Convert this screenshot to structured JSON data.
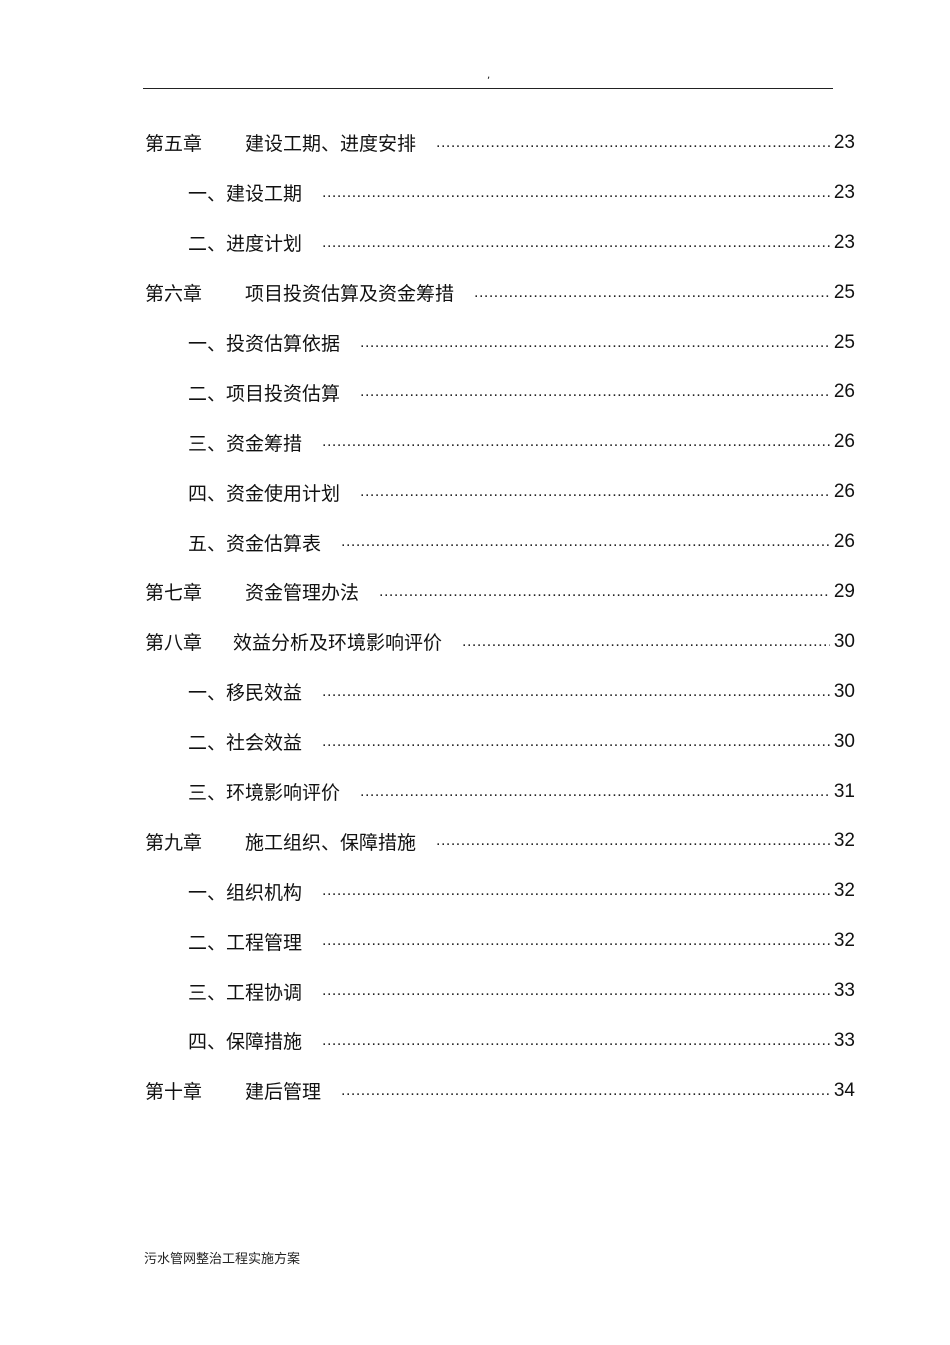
{
  "header": {
    "mark": ","
  },
  "toc": [
    {
      "chapter": "第五章",
      "title": "建设工期、进度安排",
      "page": "23"
    },
    {
      "title": "一、建设工期",
      "page": "23"
    },
    {
      "title": "二、进度计划",
      "page": "23"
    },
    {
      "chapter": "第六章",
      "title": "项目投资估算及资金筹措",
      "page": "25"
    },
    {
      "title": "一、投资估算依据",
      "page": "25"
    },
    {
      "title": "二、项目投资估算",
      "page": "26"
    },
    {
      "title": "三、资金筹措",
      "page": "26"
    },
    {
      "title": "四、资金使用计划",
      "page": "26"
    },
    {
      "title": "五、资金估算表",
      "page": "26"
    },
    {
      "chapter": "第七章",
      "title": "资金管理办法",
      "page": "29"
    },
    {
      "chapter": "第八章",
      "title": "效益分析及环境影响评价",
      "page": "30"
    },
    {
      "title": "一、移民效益",
      "page": "30"
    },
    {
      "title": "二、社会效益",
      "page": "30"
    },
    {
      "title": "三、环境影响评价",
      "page": "31"
    },
    {
      "chapter": "第九章",
      "title": "施工组织、保障措施",
      "page": "32"
    },
    {
      "title": "一、组织机构",
      "page": "32"
    },
    {
      "title": "二、工程管理",
      "page": "32"
    },
    {
      "title": "三、工程协调",
      "page": "33"
    },
    {
      "title": "四、保障措施",
      "page": "33"
    },
    {
      "chapter": "第十章",
      "title": "建后管理",
      "page": "34"
    }
  ],
  "footer": {
    "text": "污水管网整治工程实施方案"
  }
}
